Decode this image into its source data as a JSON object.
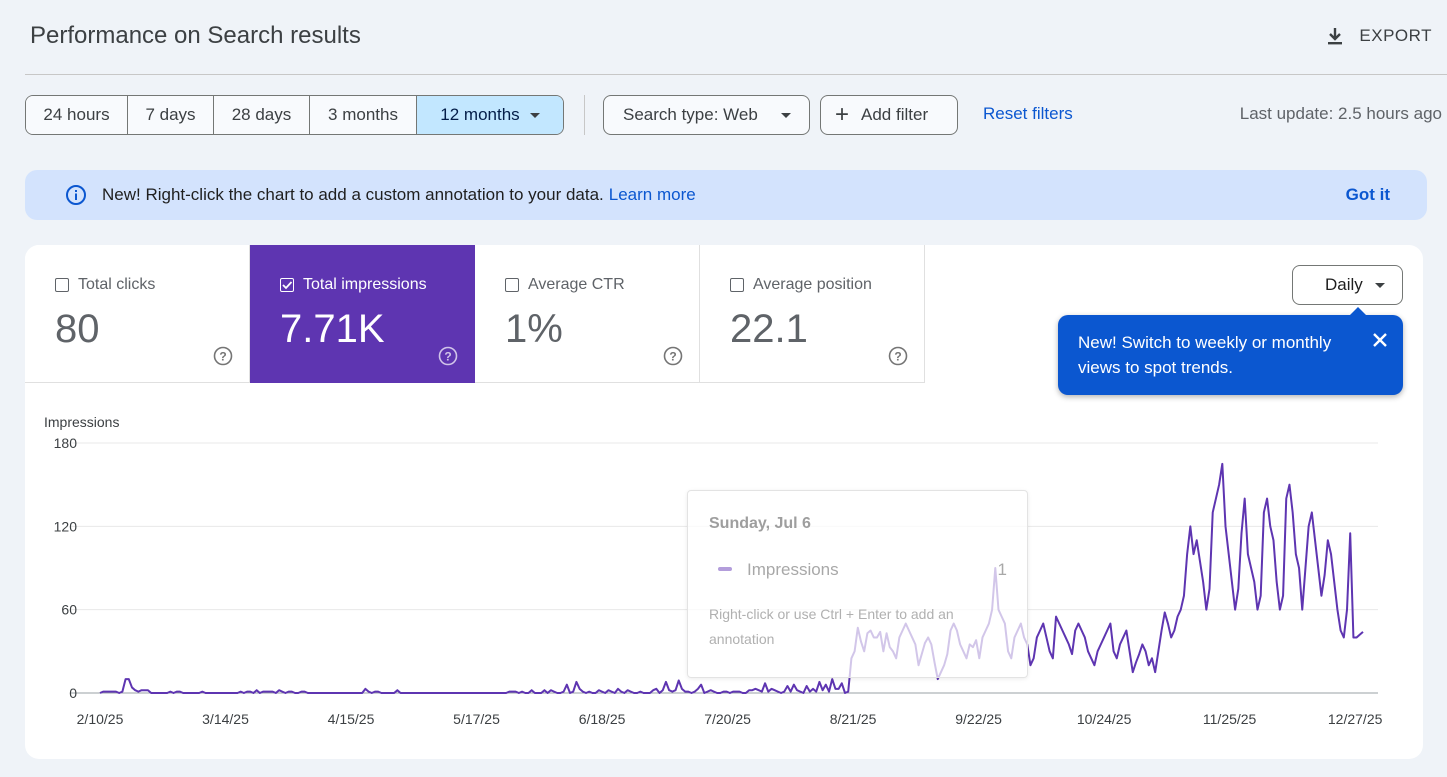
{
  "header": {
    "title": "Performance on Search results",
    "export_label": "EXPORT"
  },
  "filters": {
    "ranges": [
      "24 hours",
      "7 days",
      "28 days",
      "3 months",
      "12 months"
    ],
    "active_range": "12 months",
    "search_type": "Search type: Web",
    "add_filter": "Add filter",
    "reset": "Reset filters",
    "last_update": "Last update: 2.5 hours ago"
  },
  "banner": {
    "text": "New! Right-click the chart to add a custom annotation to your data.",
    "learn_more": "Learn more",
    "got_it": "Got it"
  },
  "metrics": [
    {
      "label": "Total clicks",
      "value": "80",
      "checked": false
    },
    {
      "label": "Total impressions",
      "value": "7.71K",
      "checked": true
    },
    {
      "label": "Average CTR",
      "value": "1%",
      "checked": false
    },
    {
      "label": "Average position",
      "value": "22.1",
      "checked": false
    }
  ],
  "granularity": {
    "label": "Daily"
  },
  "tooltip": {
    "text": "New! Switch to weekly or monthly views to spot trends."
  },
  "hover_card": {
    "date": "Sunday, Jul 6",
    "metric": "Impressions",
    "value": "1",
    "hint": "Right-click or use Ctrl + Enter to add an annotation"
  },
  "colors": {
    "accent": "#5e35b1",
    "line": "#5e35b1",
    "banner": "#d3e3fd",
    "tooltip": "#0b57d0",
    "active_range": "#c2e7ff"
  },
  "chart_data": {
    "type": "line",
    "ylabel": "Impressions",
    "ylim": [
      0,
      180
    ],
    "yticks": [
      0,
      60,
      120,
      180
    ],
    "xticks": [
      "2/10/25",
      "3/14/25",
      "4/15/25",
      "5/17/25",
      "6/18/25",
      "7/20/25",
      "8/21/25",
      "9/22/25",
      "10/24/25",
      "11/25/25",
      "12/27/25"
    ],
    "x_start": "2/10/25",
    "x_end": "12/29/25",
    "grid": true,
    "series": [
      {
        "name": "Impressions",
        "values": [
          0,
          1,
          1,
          1,
          1,
          1,
          0,
          1,
          10,
          10,
          4,
          2,
          1,
          2,
          2,
          2,
          0,
          0,
          0,
          0,
          0,
          0,
          1,
          0,
          1,
          1,
          0,
          0,
          0,
          0,
          0,
          0,
          1,
          0,
          0,
          0,
          0,
          0,
          0,
          0,
          0,
          0,
          0,
          0,
          1,
          0,
          1,
          1,
          0,
          2,
          0,
          1,
          1,
          1,
          1,
          0,
          2,
          1,
          0,
          1,
          1,
          0,
          0,
          1,
          1,
          0,
          0,
          0,
          0,
          0,
          0,
          0,
          0,
          0,
          0,
          0,
          0,
          0,
          0,
          0,
          0,
          0,
          0,
          3,
          1,
          0,
          1,
          1,
          0,
          0,
          0,
          0,
          0,
          2,
          0,
          0,
          0,
          0,
          0,
          0,
          0,
          0,
          0,
          0,
          0,
          0,
          0,
          0,
          0,
          0,
          0,
          0,
          0,
          0,
          0,
          0,
          0,
          0,
          0,
          0,
          0,
          0,
          0,
          0,
          0,
          0,
          0,
          0,
          1,
          1,
          1,
          0,
          1,
          0,
          0,
          2,
          0,
          0,
          0,
          2,
          0,
          2,
          1,
          0,
          0,
          1,
          6,
          0,
          1,
          8,
          3,
          1,
          0,
          1,
          0,
          0,
          2,
          1,
          0,
          2,
          1,
          0,
          3,
          1,
          0,
          2,
          1,
          0,
          0,
          1,
          0,
          0,
          0,
          2,
          3,
          0,
          2,
          8,
          2,
          1,
          2,
          9,
          3,
          1,
          1,
          0,
          1,
          3,
          6,
          0,
          1,
          2,
          1,
          0,
          0,
          1,
          1,
          0,
          1,
          1,
          1,
          0,
          0,
          2,
          2,
          3,
          2,
          1,
          7,
          1,
          3,
          2,
          1,
          0,
          1,
          5,
          1,
          6,
          2,
          1,
          0,
          5,
          1,
          3,
          1,
          8,
          2,
          6,
          1,
          10,
          3,
          3,
          7,
          0,
          1,
          25,
          30,
          47,
          37,
          30,
          43,
          45,
          40,
          40,
          44,
          30,
          43,
          33,
          30,
          25,
          40,
          45,
          50,
          45,
          40,
          35,
          20,
          28,
          36,
          40,
          35,
          22,
          10,
          15,
          20,
          28,
          45,
          50,
          45,
          35,
          30,
          25,
          35,
          33,
          38,
          25,
          40,
          45,
          50,
          60,
          90,
          60,
          55,
          50,
          30,
          25,
          40,
          45,
          50,
          40,
          35,
          20,
          25,
          40,
          45,
          50,
          40,
          30,
          25,
          55,
          50,
          45,
          40,
          35,
          28,
          45,
          50,
          45,
          40,
          30,
          25,
          20,
          30,
          35,
          40,
          45,
          50,
          30,
          25,
          35,
          40,
          45,
          30,
          15,
          22,
          28,
          35,
          30,
          20,
          25,
          15,
          30,
          45,
          58,
          50,
          40,
          45,
          55,
          60,
          70,
          100,
          120,
          100,
          110,
          95,
          80,
          60,
          75,
          130,
          140,
          150,
          165,
          120,
          100,
          80,
          60,
          75,
          115,
          140,
          100,
          90,
          80,
          60,
          70,
          130,
          140,
          120,
          110,
          80,
          60,
          70,
          140,
          150,
          130,
          100,
          90,
          60,
          90,
          120,
          130,
          110,
          90,
          70,
          85,
          110,
          100,
          80,
          60,
          45,
          40,
          60,
          115,
          40,
          40,
          42,
          44
        ]
      }
    ]
  }
}
